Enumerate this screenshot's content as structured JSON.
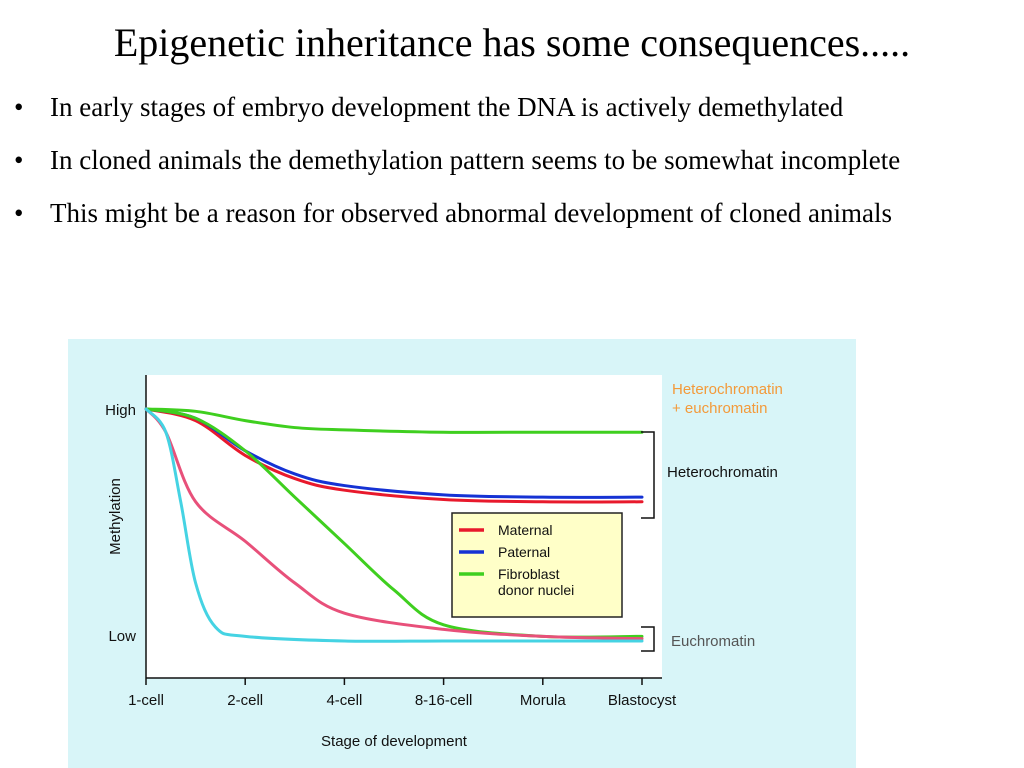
{
  "slide": {
    "title": "Epigenetic inheritance has some consequences.....",
    "bullets": [
      "In early stages of embryo development the DNA is actively demethylated",
      "In cloned animals the demethylation pattern seems to be somewhat incomplete",
      "This might be a reason for observed abnormal development of cloned animals"
    ],
    "bullet_glyph": "•"
  },
  "chart_data": {
    "type": "line",
    "xlabel": "Stage of development",
    "ylabel": "Methylation",
    "categories": [
      "1-cell",
      "2-cell",
      "4-cell",
      "8-16-cell",
      "Morula",
      "Blastocyst"
    ],
    "y_ticks": [
      "High",
      "Low"
    ],
    "y_scale": "qualitative, Low (0) to High (1)",
    "ylim": [
      0,
      1
    ],
    "background_color": "#d8f5f8",
    "series": [
      {
        "name": "Maternal",
        "color": "#e8192c",
        "x": [
          0,
          0.5,
          1,
          1.5,
          2,
          3,
          4,
          5
        ],
        "y": [
          1.0,
          0.95,
          0.8,
          0.7,
          0.65,
          0.61,
          0.6,
          0.6
        ]
      },
      {
        "name": "Paternal",
        "color": "#1532d4",
        "x": [
          0,
          0.5,
          1,
          1.5,
          2,
          3,
          4,
          5
        ],
        "y": [
          1.0,
          0.96,
          0.82,
          0.72,
          0.67,
          0.63,
          0.62,
          0.62
        ]
      },
      {
        "name": "Fibroblast donor nuclei",
        "color": "#3fcf1f",
        "x": [
          0,
          0.5,
          1,
          1.5,
          2,
          3,
          4,
          5
        ],
        "y": [
          1.0,
          0.99,
          0.95,
          0.92,
          0.91,
          0.9,
          0.9,
          0.9
        ]
      },
      {
        "name": "",
        "color": "#3fcf1f",
        "x": [
          0,
          0.5,
          1,
          1.5,
          2,
          2.5,
          3,
          4,
          5
        ],
        "y": [
          1.0,
          0.96,
          0.82,
          0.62,
          0.42,
          0.22,
          0.07,
          0.02,
          0.02
        ]
      },
      {
        "name": "",
        "color": "#e8507a",
        "x": [
          0,
          0.2,
          0.5,
          1,
          1.5,
          2,
          3,
          4,
          5
        ],
        "y": [
          1.0,
          0.9,
          0.6,
          0.43,
          0.25,
          0.12,
          0.05,
          0.02,
          0.01
        ]
      },
      {
        "name": "",
        "color": "#45d3e3",
        "x": [
          0,
          0.2,
          0.35,
          0.5,
          0.7,
          1,
          2,
          3,
          4,
          5
        ],
        "y": [
          1.0,
          0.9,
          0.6,
          0.25,
          0.06,
          0.02,
          0.0,
          0.0,
          0.0,
          0.0
        ]
      }
    ],
    "legend": {
      "placement": "lower-right inside plot",
      "background": "#ffffc8",
      "entries": [
        {
          "label_lines": [
            "Maternal"
          ],
          "color": "#e8192c"
        },
        {
          "label_lines": [
            "Paternal"
          ],
          "color": "#1532d4"
        },
        {
          "label_lines": [
            "Fibroblast",
            "donor nuclei"
          ],
          "color": "#3fcf1f"
        }
      ]
    },
    "annotations": [
      {
        "text_lines": [
          "Heterochromatin",
          "+ euchromatin"
        ],
        "color": "#f39a3a"
      },
      {
        "text_lines": [
          "Heterochromatin"
        ],
        "color": "#111111",
        "bracket": true
      },
      {
        "text_lines": [
          "Euchromatin"
        ],
        "color": "#555555",
        "bracket": true
      }
    ]
  }
}
